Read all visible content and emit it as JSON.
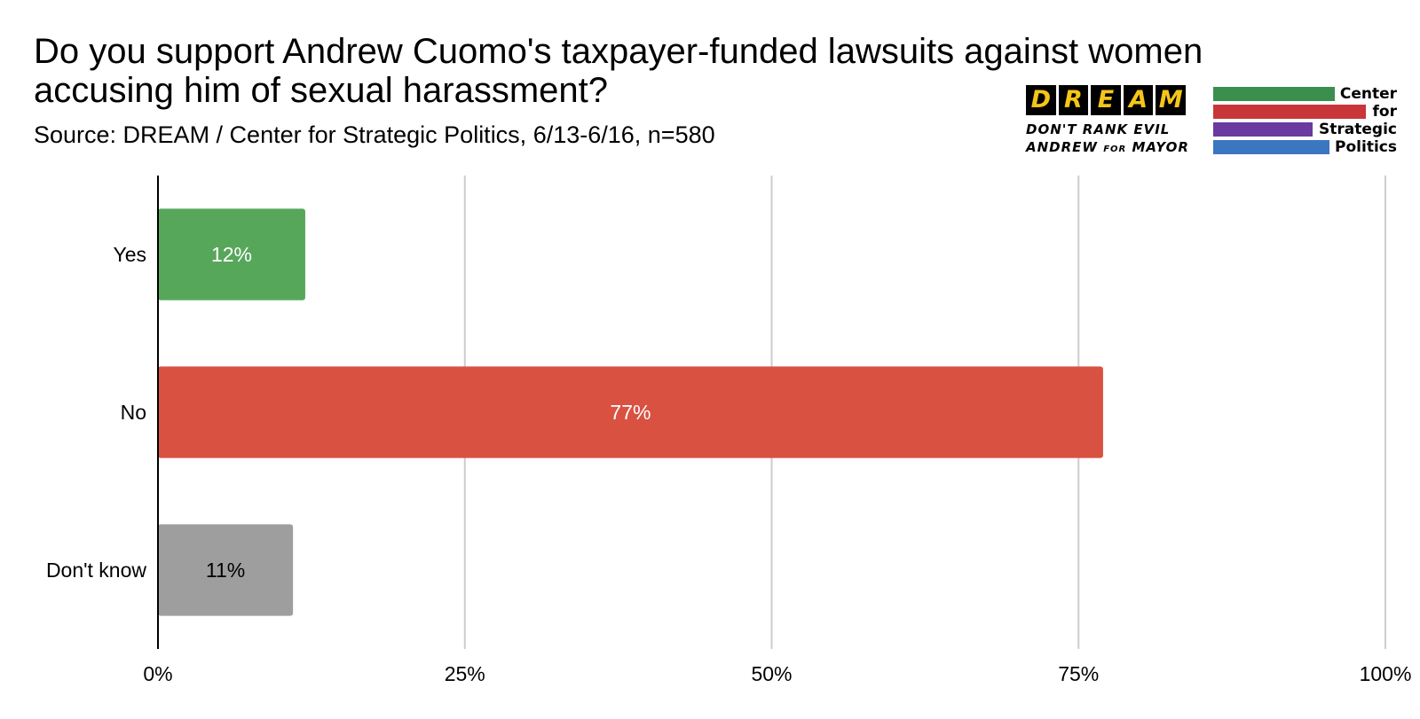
{
  "title": "Do you support Andrew Cuomo's taxpayer-funded lawsuits against women accusing him of sexual harassment?",
  "source": "Source:  DREAM / Center for Strategic Politics, 6/13-6/16, n=580",
  "logos": {
    "dream": {
      "letters": [
        "D",
        "R",
        "E",
        "A",
        "M"
      ],
      "tagline_line1": "DON'T RANK EVIL",
      "tagline_line2_a": "ANDREW ",
      "tagline_line2_small": "FOR",
      "tagline_line2_b": " MAYOR",
      "letter_color": "#f5c518"
    },
    "csp": {
      "words": [
        "Center",
        "for",
        "Strategic",
        "Politics"
      ],
      "bar_colors": [
        "#3a8f4f",
        "#c8363a",
        "#6a3aa0",
        "#3b76c0"
      ]
    }
  },
  "chart_data": {
    "type": "bar",
    "orientation": "horizontal",
    "categories": [
      "Yes",
      "No",
      "Don't know"
    ],
    "values": [
      12,
      77,
      11
    ],
    "data_labels": [
      "12%",
      "77%",
      "11%"
    ],
    "colors": [
      "#57a75b",
      "#d95141",
      "#9e9e9e"
    ],
    "label_colors": [
      "#ffffff",
      "#ffffff",
      "#000000"
    ],
    "xlim": [
      0,
      100
    ],
    "xticks": [
      0,
      25,
      50,
      75,
      100
    ],
    "xtick_labels": [
      "0%",
      "25%",
      "50%",
      "75%",
      "100%"
    ],
    "grid": true,
    "legend": "none"
  }
}
